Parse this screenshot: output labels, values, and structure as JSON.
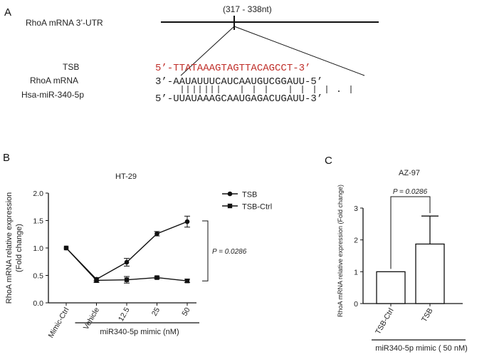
{
  "panel_a": {
    "letter": "A",
    "utr_label": "RhoA mRNA 3’-UTR",
    "site_label": "(317 - 338nt)",
    "rows": [
      {
        "name": "TSB",
        "seq": "5’-TTATAAAGTAGTTACAGCCT-3’",
        "color": "#c0302b"
      },
      {
        "name": "RhoA mRNA",
        "seq": "3’-AAUAUUUCAUCAAUGUCGGAUU-5’",
        "color": "#222222"
      },
      {
        "name": "Hsa-miR-340-5p",
        "seq": "5’-UUAUAAAGCAAUGAGACUGAUU-3’",
        "color": "#222222"
      }
    ]
  },
  "chart_data": [
    {
      "panel": "B",
      "type": "line",
      "title": "HT-29",
      "ylabel": "RhoA mRNA relative expression\n(Fold change)",
      "xlabel": "miR340-5p mimic (nM)",
      "categories": [
        "Mimic-Ctrl",
        "Vehicle",
        "12.5",
        "25",
        "50"
      ],
      "ylim": [
        0,
        2.0
      ],
      "yticks": [
        "0.0",
        "0.5",
        "1.0",
        "1.5",
        "2.0"
      ],
      "series": [
        {
          "name": "TSB",
          "marker": "circle",
          "values": [
            1.0,
            0.43,
            0.74,
            1.26,
            1.48
          ],
          "errors": [
            0.0,
            0.03,
            0.07,
            0.04,
            0.1
          ]
        },
        {
          "name": "TSB-Ctrl",
          "marker": "square",
          "values": [
            1.0,
            0.41,
            0.42,
            0.46,
            0.4
          ],
          "errors": [
            0.0,
            0.04,
            0.06,
            0.02,
            0.03
          ]
        }
      ],
      "annotation": "P = 0.0286"
    },
    {
      "panel": "C",
      "type": "bar",
      "title": "AZ-97",
      "ylabel": "RhoA mRNA relative expression (Fold change)",
      "xlabel": "miR340-5p mimic ( 50 nM)",
      "categories": [
        "TSB-Ctrl",
        "TSB"
      ],
      "values": [
        1.0,
        1.87
      ],
      "errors": [
        0.0,
        0.88
      ],
      "ylim": [
        0,
        3
      ],
      "yticks": [
        "0",
        "1",
        "2",
        "3"
      ],
      "annotation": "P = 0.0286"
    }
  ]
}
